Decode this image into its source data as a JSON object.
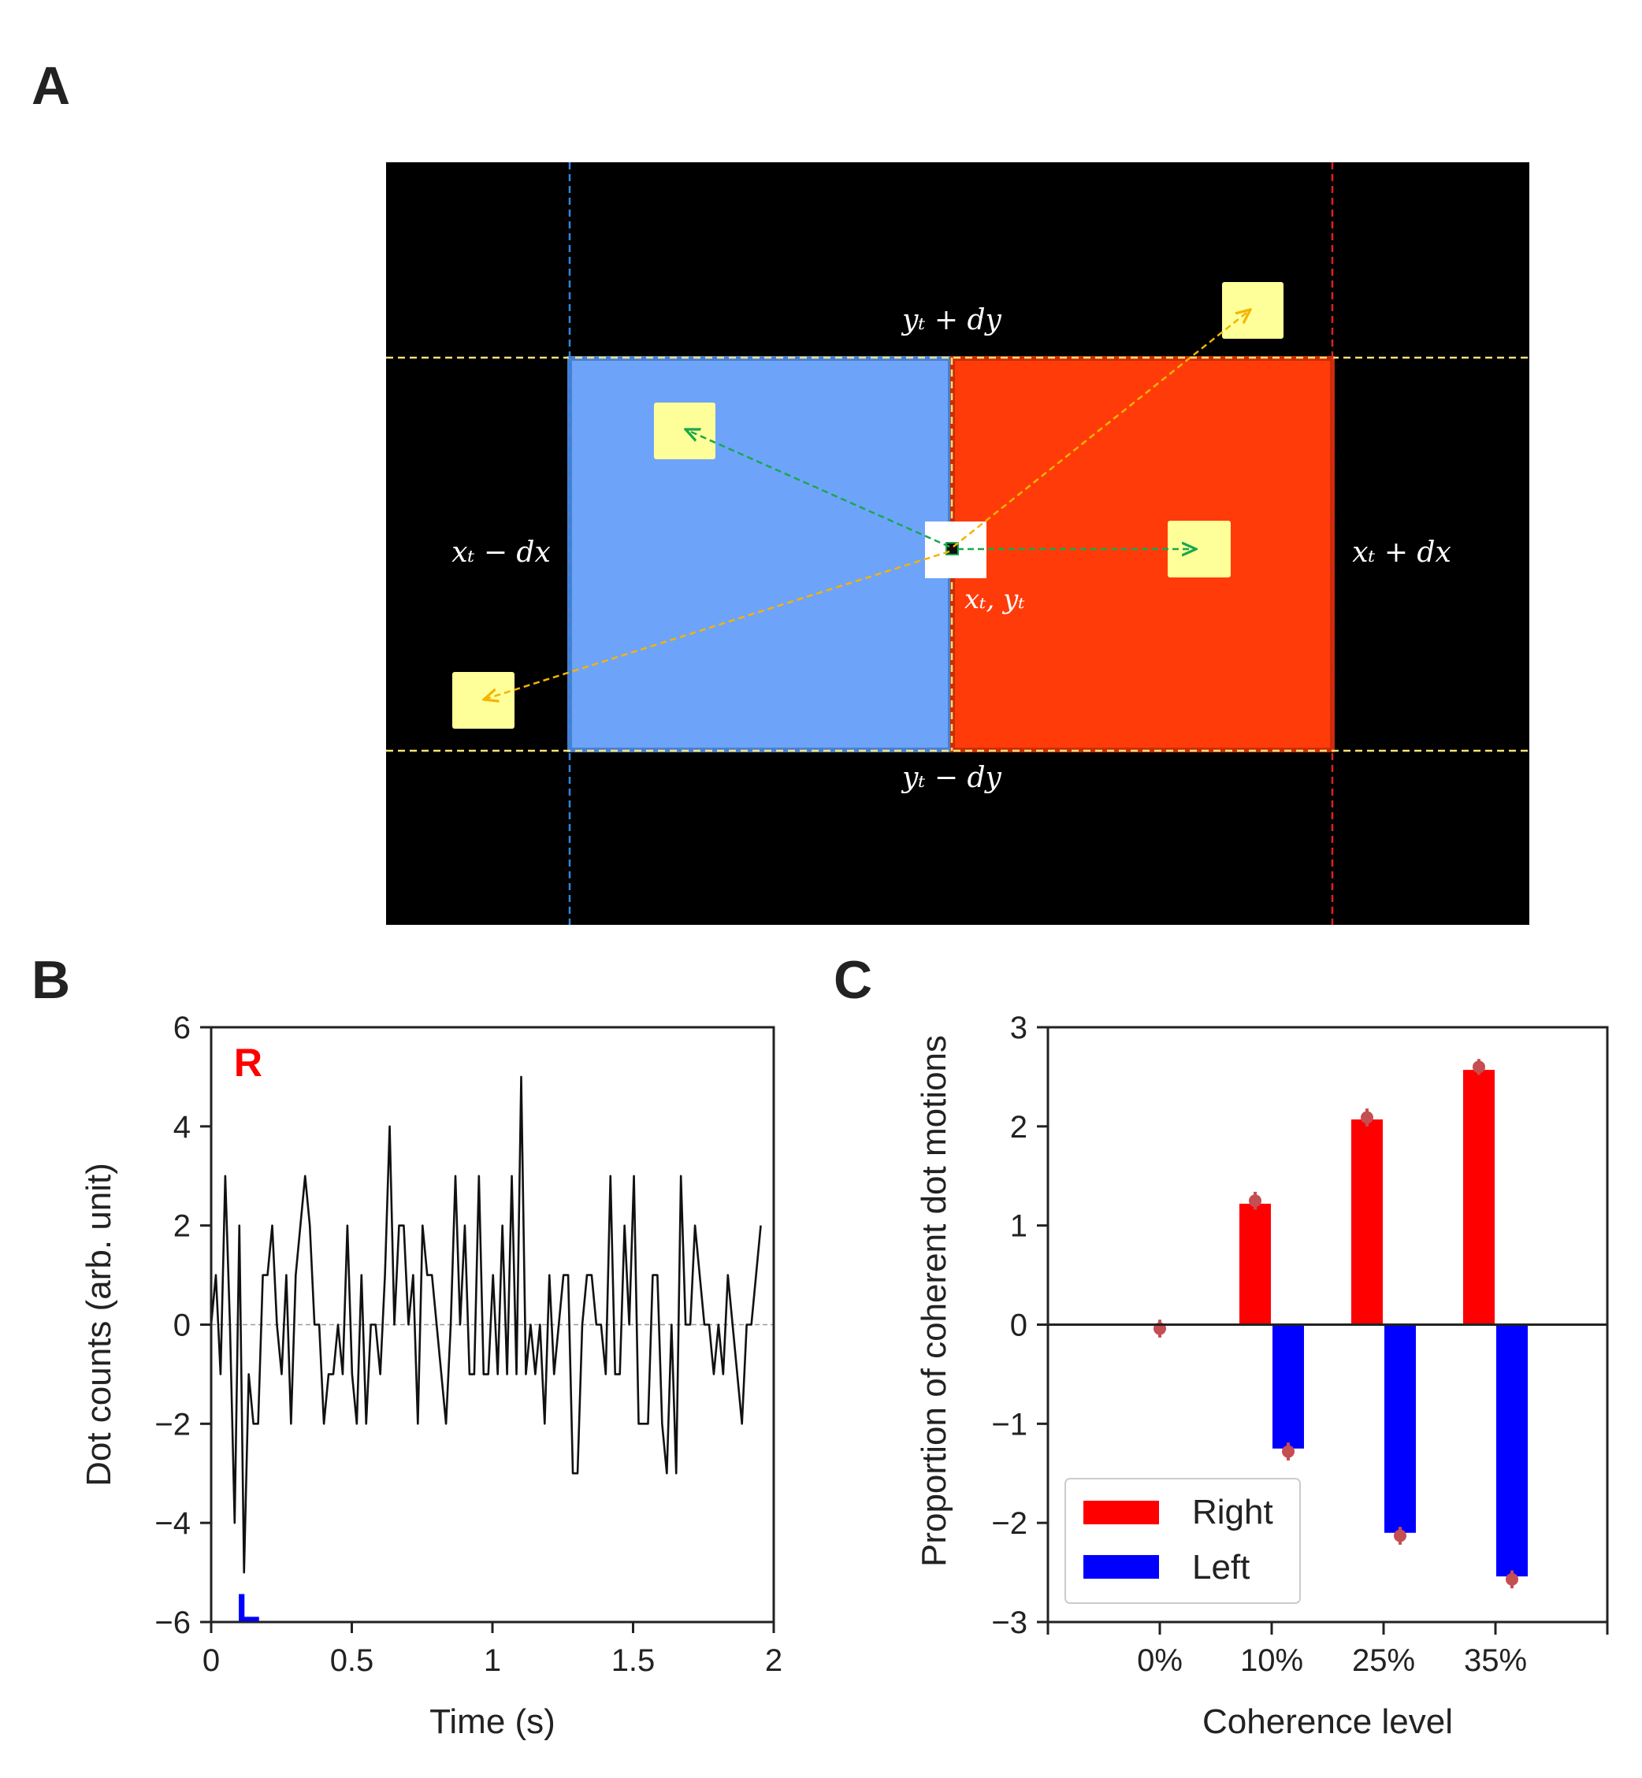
{
  "panels": {
    "a": "A",
    "b": "B",
    "c": "C"
  },
  "diagram_a": {
    "labels": {
      "top": "yₜ + dy",
      "bottom": "yₜ − dy",
      "left": "xₜ − dx",
      "right": "xₜ + dx",
      "center": "xₜ, yₜ"
    },
    "colors": {
      "background": "#000000",
      "left_box": "#6EA3FA",
      "right_box": "#FF3B0A",
      "dot": "#FFFF99",
      "center_square": "#FFFFFF",
      "yellow_line": "#F5E27A",
      "blue_line": "#2E86DE",
      "red_line": "#E02020",
      "green_arrow": "#19A84E",
      "orange_arrow": "#F4B400"
    }
  },
  "chart_data": [
    {
      "id": "B",
      "type": "line",
      "xlabel": "Time (s)",
      "ylabel": "Dot counts (arb. unit)",
      "xlim": [
        0,
        2
      ],
      "ylim": [
        -6,
        6
      ],
      "xticks": [
        0,
        0.5,
        1,
        1.5,
        2
      ],
      "xtick_labels": [
        "0",
        "0.5",
        "1",
        "1.5",
        "2"
      ],
      "yticks": [
        -6,
        -4,
        -2,
        0,
        2,
        4,
        6
      ],
      "ytick_labels": [
        "−6",
        "−4",
        "−2",
        "0",
        "2",
        "4",
        "6"
      ],
      "annotations": [
        {
          "text": "R",
          "color": "#FF0000",
          "x": 0.07,
          "y": 5.3
        },
        {
          "text": "L",
          "color": "#0000FF",
          "x": 0.07,
          "y": -5.7
        }
      ],
      "zero_line": true,
      "line_color": "#111111",
      "step": 0.0167,
      "y": [
        0,
        1,
        -1,
        3,
        0,
        -4,
        2,
        -5,
        -1,
        -2,
        -2,
        1,
        1,
        2,
        0,
        -1,
        1,
        -2,
        1,
        2,
        3,
        2,
        0,
        0,
        -2,
        -1,
        -1,
        0,
        -1,
        2,
        -1,
        -2,
        1,
        -2,
        0,
        0,
        -1,
        1,
        4,
        0,
        2,
        2,
        0,
        1,
        -2,
        2,
        1,
        1,
        0,
        -1,
        -2,
        0,
        3,
        0,
        2,
        -1,
        -1,
        3,
        -1,
        -1,
        1,
        -1,
        2,
        -1,
        3,
        -1,
        5,
        -1,
        0,
        -1,
        0,
        -2,
        1,
        -1,
        0,
        1,
        1,
        -3,
        -3,
        0,
        1,
        1,
        0,
        0,
        -1,
        3,
        -1,
        -1,
        2,
        0,
        3,
        -2,
        -2,
        -2,
        1,
        1,
        -2,
        -3,
        0,
        -3,
        3,
        0,
        0,
        2,
        1,
        0,
        0,
        -1,
        0,
        -1,
        1,
        0,
        -1,
        -2,
        0,
        0,
        1,
        2
      ]
    },
    {
      "id": "C",
      "type": "bar",
      "xlabel": "Coherence level",
      "ylabel": "Proportion of coherent dot motions",
      "categories": [
        "0%",
        "10%",
        "25%",
        "35%"
      ],
      "ylim": [
        -3,
        3
      ],
      "yticks": [
        -3,
        -2,
        -1,
        0,
        1,
        2,
        3
      ],
      "ytick_labels": [
        "−3",
        "−2",
        "−1",
        "0",
        "1",
        "2",
        "3"
      ],
      "series": [
        {
          "name": "Right",
          "color": "#FF0000",
          "values": [
            0,
            1.22,
            2.07,
            2.57
          ]
        },
        {
          "name": "Left",
          "color": "#0000FF",
          "values": [
            0,
            -1.25,
            -2.1,
            -2.54
          ]
        }
      ],
      "means": [
        {
          "category": "0%",
          "value": -0.04,
          "err": 0.09
        },
        {
          "category": "10%",
          "right": 1.25,
          "right_err": 0.09,
          "left": -1.28,
          "left_err": 0.09
        },
        {
          "category": "25%",
          "right": 2.09,
          "right_err": 0.09,
          "left": -2.13,
          "left_err": 0.09
        },
        {
          "category": "35%",
          "right": 2.6,
          "right_err": 0.08,
          "left": -2.57,
          "left_err": 0.09
        }
      ],
      "marker_color": "#C44E52",
      "legend_position": "lower-left",
      "zero_line": true
    }
  ]
}
